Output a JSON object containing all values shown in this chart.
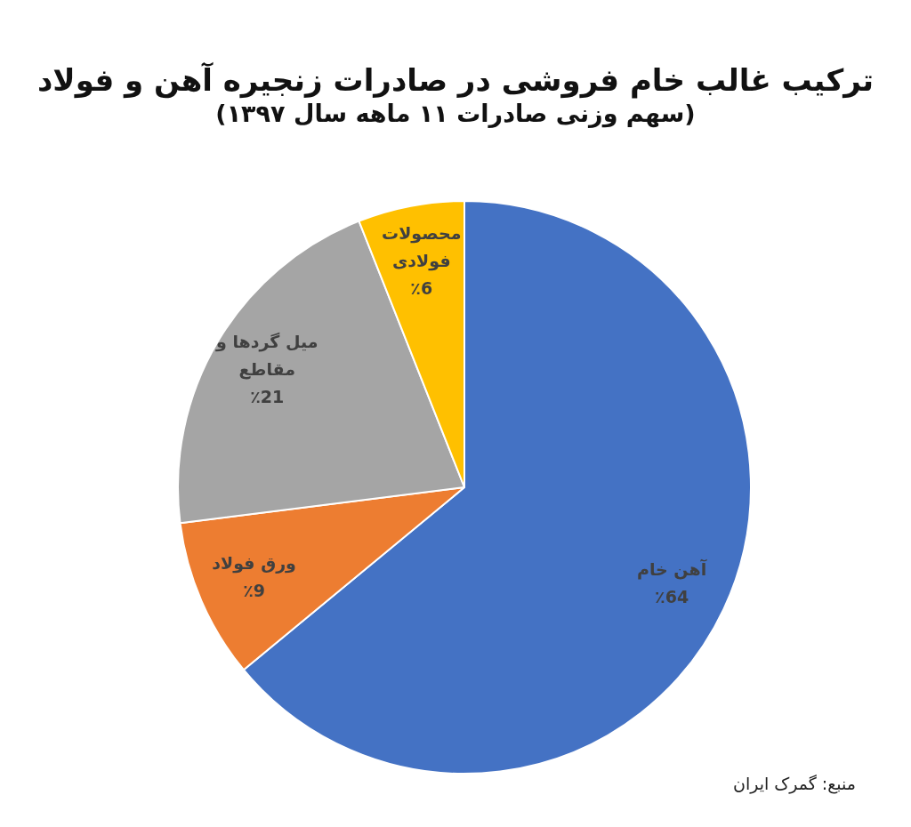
{
  "chart_data": {
    "type": "pie",
    "title": "ترکیب غالب خام فروشی در صادرات زنجیره آهن و فولاد",
    "subtitle": "(سهم وزنی صادرات ۱۱ ماهه سال ۱۳۹۷)",
    "categories": [
      "آهن خام",
      "ورق فولاد",
      "میل گردها و مقاطع",
      "محصولات فولادی"
    ],
    "values": [
      64,
      9,
      21,
      6
    ],
    "colors": [
      "#4472c4",
      "#ed7d31",
      "#a5a5a5",
      "#ffc000"
    ],
    "value_labels": [
      "٪64",
      "٪9",
      "٪21",
      "٪6"
    ],
    "annotations": [
      "منبع: گمرک ایران"
    ]
  }
}
